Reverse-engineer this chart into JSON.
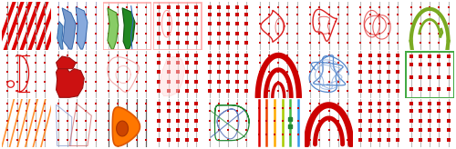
{
  "fig_width": 5.0,
  "fig_height": 1.64,
  "dpi": 100,
  "bg": "#ffffff",
  "drill_color": "#bbbbbb",
  "marker_color": "#cc0000",
  "n_rows": 3,
  "n_cols": 9
}
